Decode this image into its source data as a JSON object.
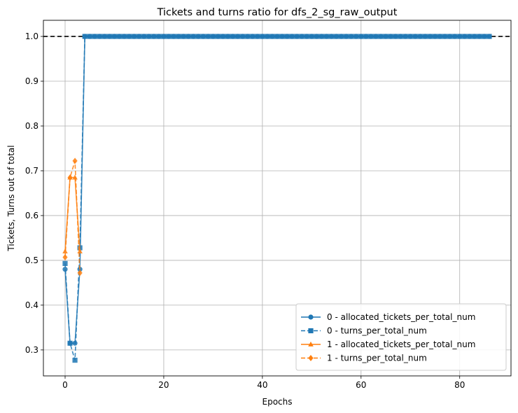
{
  "chart_data": {
    "type": "line",
    "title": "Tickets and turns ratio for dfs_2_sg_raw_output",
    "xlabel": "Epochs",
    "ylabel": "Tickets, Turns out of total",
    "xlim": [
      -4.4,
      90.4
    ],
    "ylim": [
      0.242,
      1.036
    ],
    "xticks": [
      0,
      20,
      40,
      60,
      80
    ],
    "xtick_labels": [
      "0",
      "20",
      "40",
      "60",
      "80"
    ],
    "yticks": [
      0.3,
      0.4,
      0.5,
      0.6,
      0.7,
      0.8,
      0.9,
      1.0
    ],
    "ytick_labels": [
      "0.3",
      "0.4",
      "0.5",
      "0.6",
      "0.7",
      "0.8",
      "0.9",
      "1.0"
    ],
    "grid": true,
    "legend_position": "lower-right",
    "reference_line": {
      "y": 1.0,
      "style": "dashed",
      "color": "#000000"
    },
    "series": [
      {
        "name": "0 - allocated_tickets_per_total_num",
        "color": "#1f77b4",
        "marker": "circle",
        "linestyle": "solid",
        "values": [
          0.48,
          0.315,
          0.315,
          0.48
        ],
        "tail_constant": 1.0,
        "x_start": 0,
        "x_end": 86
      },
      {
        "name": "0 - turns_per_total_num",
        "color": "#1f77b4",
        "marker": "square",
        "linestyle": "dashed",
        "values": [
          0.493,
          0.315,
          0.277,
          0.528
        ],
        "tail_constant": 1.0,
        "x_start": 0,
        "x_end": 86
      },
      {
        "name": "1 - allocated_tickets_per_total_num",
        "color": "#ff7f0e",
        "marker": "triangle",
        "linestyle": "solid",
        "values": [
          0.52,
          0.685,
          0.685,
          0.52
        ],
        "x_start": 0
      },
      {
        "name": "1 - turns_per_total_num",
        "color": "#ff7f0e",
        "marker": "diamond",
        "linestyle": "dashed",
        "values": [
          0.507,
          0.685,
          0.722,
          0.472
        ],
        "x_start": 0
      }
    ]
  }
}
